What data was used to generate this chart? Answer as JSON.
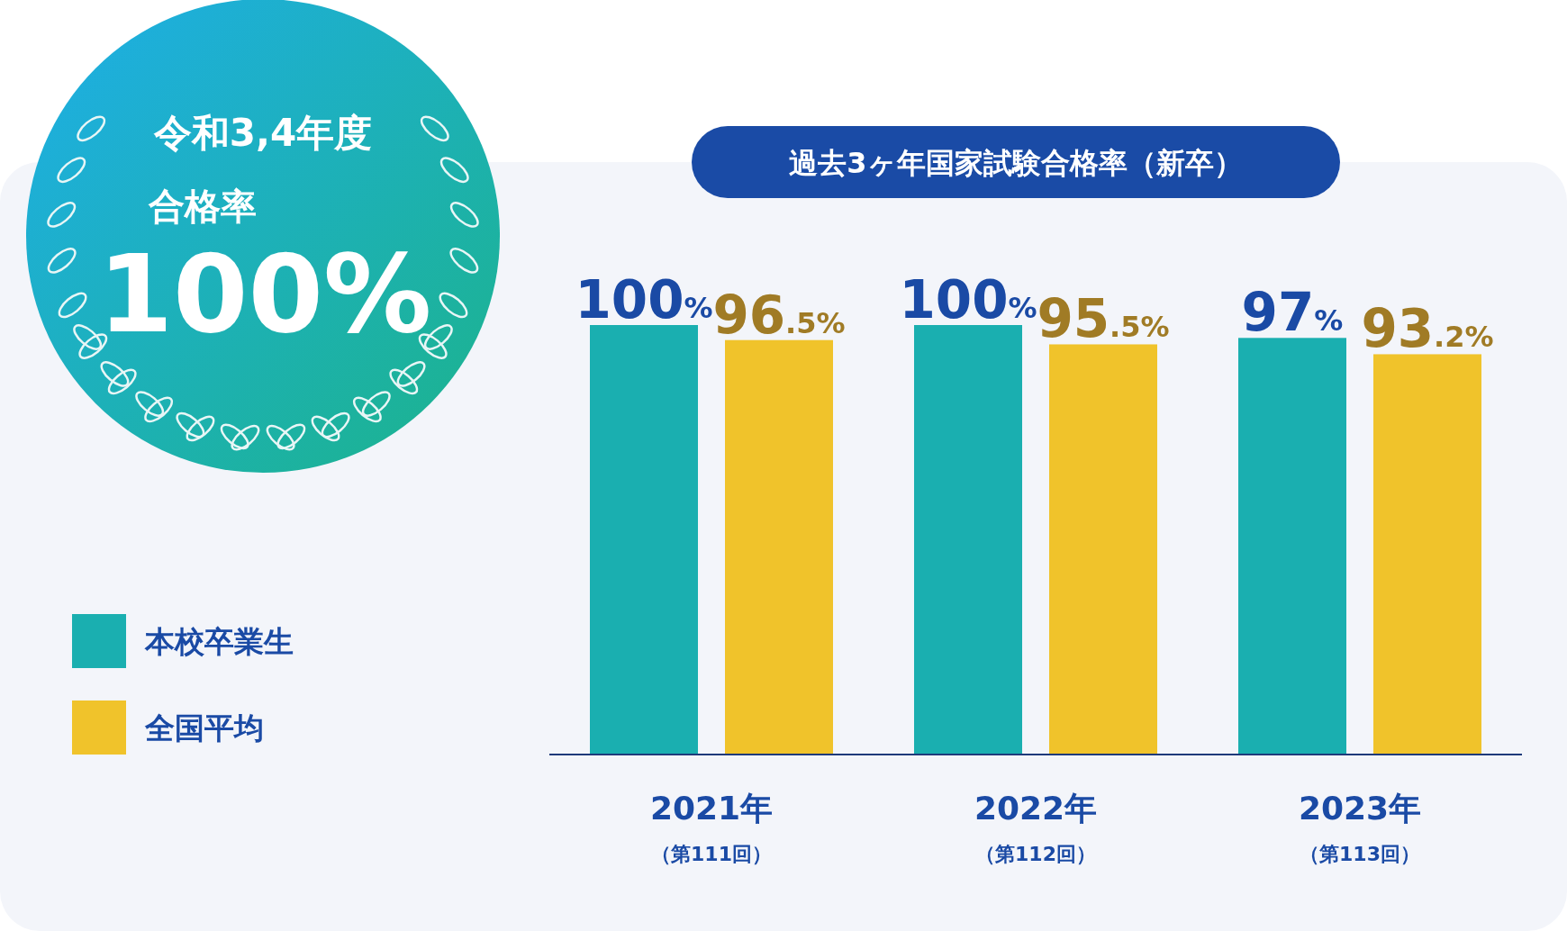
{
  "chart_data": {
    "type": "bar",
    "title": "過去3ヶ年国家試験合格率（新卒）",
    "categories": [
      "2021年（第111回）",
      "2022年（第112回）",
      "2023年（第113回）"
    ],
    "series": [
      {
        "name": "本校卒業生",
        "color": "#1aafb0",
        "values": [
          100,
          100,
          97
        ],
        "value_labels": [
          "100%",
          "100%",
          "97%"
        ]
      },
      {
        "name": "全国平均",
        "color": "#f0c32b",
        "values": [
          96.5,
          95.5,
          93.2
        ],
        "value_labels": [
          "96.5%",
          "95.5%",
          "93.2%"
        ]
      }
    ],
    "legend": "left",
    "annotations": [
      "令和3,4年度",
      "合格率",
      "100%"
    ]
  }
}
